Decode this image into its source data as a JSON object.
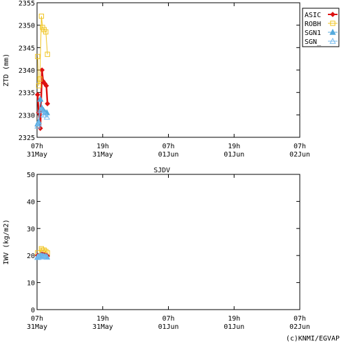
{
  "title": "SJDV",
  "footer": "(c)KNMI/EGVAP",
  "chart_data": [
    {
      "type": "line",
      "ylabel": "ZTD (mm)",
      "ylim": [
        2325,
        2355
      ],
      "yticks": [
        2325,
        2330,
        2335,
        2340,
        2345,
        2350,
        2355
      ],
      "xlim": [
        0,
        48
      ],
      "xticks": [
        {
          "value": 0,
          "label": [
            "07h",
            "31May"
          ]
        },
        {
          "value": 12,
          "label": [
            "19h",
            "31May"
          ]
        },
        {
          "value": 24,
          "label": [
            "07h",
            "01Jun"
          ]
        },
        {
          "value": 36,
          "label": [
            "19h",
            "01Jun"
          ]
        },
        {
          "value": 48,
          "label": [
            "07h",
            "02Jun"
          ]
        }
      ],
      "legend_position": "right",
      "series": [
        {
          "name": "ASIC",
          "color": "#dd1111",
          "marker": "filled-diamond",
          "x": [
            0.1,
            0.3,
            0.6,
            0.9,
            1.1,
            1.4,
            1.7,
            1.9
          ],
          "y": [
            2334.5,
            2330.5,
            2327.0,
            2340.0,
            2337.5,
            2337.0,
            2336.5,
            2332.5
          ]
        },
        {
          "name": "ROBH",
          "color": "#f0c420",
          "marker": "open-square",
          "x": [
            0.1,
            0.3,
            0.5,
            0.8,
            1.0,
            1.3,
            1.6,
            1.9
          ],
          "y": [
            2343.0,
            2336.5,
            2338.0,
            2352.0,
            2349.5,
            2349.0,
            2348.5,
            2343.5
          ]
        },
        {
          "name": "SGN1",
          "color": "#55aadd",
          "marker": "filled-triangle",
          "x": [
            0.1,
            0.3,
            0.6,
            0.9,
            1.2,
            1.5,
            1.8
          ],
          "y": [
            2328.0,
            2328.5,
            2333.5,
            2331.5,
            2331.0,
            2330.5,
            2330.5
          ]
        },
        {
          "name": "SGN_",
          "color": "#77bbee",
          "marker": "open-triangle",
          "x": [
            0.1,
            0.3,
            0.6,
            0.9,
            1.2,
            1.5,
            1.8
          ],
          "y": [
            2327.5,
            2328.0,
            2331.0,
            2331.0,
            2330.0,
            2330.0,
            2329.5
          ]
        }
      ]
    },
    {
      "type": "line",
      "ylabel": "IWV (kg/m2)",
      "ylim": [
        0,
        50
      ],
      "yticks": [
        0,
        10,
        20,
        30,
        40,
        50
      ],
      "xlim": [
        0,
        48
      ],
      "xticks": [
        {
          "value": 0,
          "label": [
            "07h",
            "31May"
          ]
        },
        {
          "value": 12,
          "label": [
            "19h",
            "31May"
          ]
        },
        {
          "value": 24,
          "label": [
            "07h",
            "01Jun"
          ]
        },
        {
          "value": 36,
          "label": [
            "19h",
            "01Jun"
          ]
        },
        {
          "value": 48,
          "label": [
            "07h",
            "02Jun"
          ]
        }
      ],
      "series": [
        {
          "name": "ROBH",
          "color": "#f0c420",
          "marker": "open-square",
          "x": [
            0.1,
            0.3,
            0.5,
            0.8,
            1.0,
            1.3,
            1.6,
            1.9
          ],
          "y": [
            21.0,
            19.5,
            20.0,
            22.5,
            22.0,
            22.0,
            21.5,
            21.0
          ]
        },
        {
          "name": "ASIC",
          "color": "#dd1111",
          "marker": "filled-diamond",
          "x": [
            0.1,
            0.3,
            0.6,
            0.9,
            1.1,
            1.4,
            1.7,
            1.9
          ],
          "y": [
            20.0,
            19.8,
            19.5,
            20.5,
            20.3,
            20.2,
            20.0,
            19.8
          ]
        },
        {
          "name": "SGN1",
          "color": "#55aadd",
          "marker": "filled-triangle",
          "x": [
            0.1,
            0.3,
            0.6,
            0.9,
            1.2,
            1.5,
            1.8
          ],
          "y": [
            19.5,
            19.6,
            20.0,
            20.0,
            19.8,
            19.7,
            19.6
          ]
        },
        {
          "name": "SGN_",
          "color": "#77bbee",
          "marker": "open-triangle",
          "x": [
            0.1,
            0.3,
            0.6,
            0.9,
            1.2,
            1.5,
            1.8
          ],
          "y": [
            19.3,
            19.4,
            19.8,
            19.8,
            19.6,
            19.5,
            19.4
          ]
        }
      ]
    }
  ]
}
